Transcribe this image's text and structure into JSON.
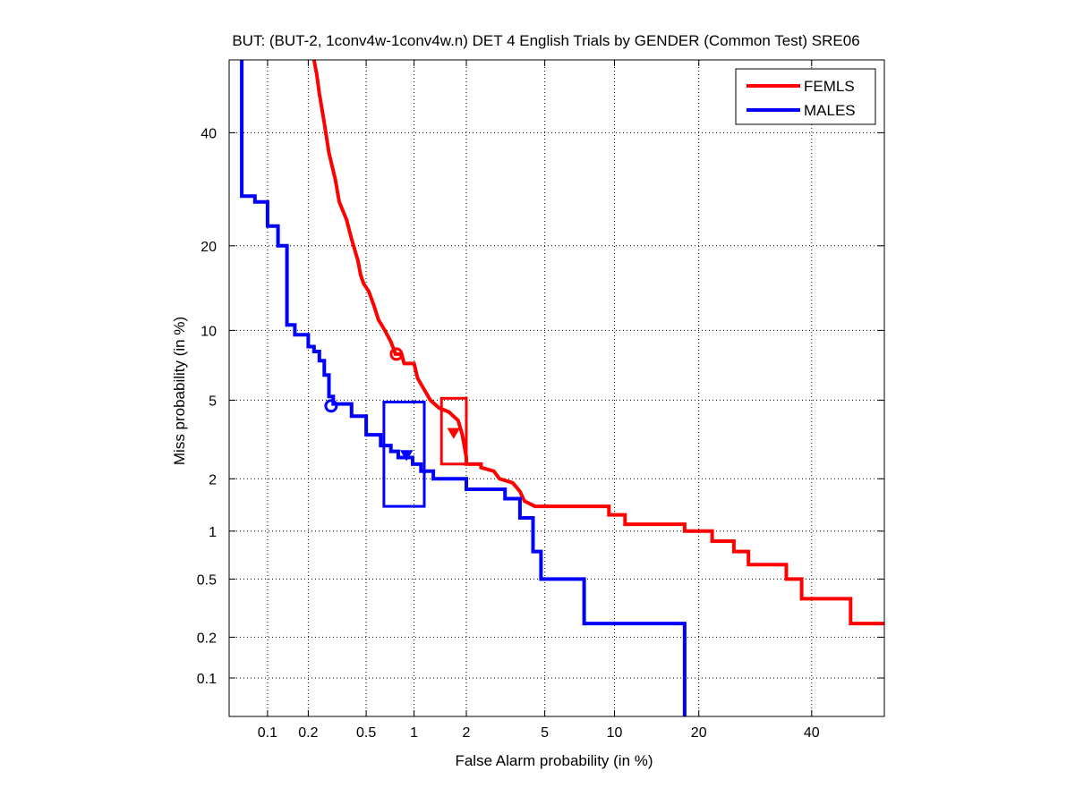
{
  "chart_data": {
    "type": "line",
    "title": "BUT: (BUT-2, 1conv4w-1conv4w.n) DET 4 English Trials by GENDER (Common Test) SRE06",
    "xlabel": "False Alarm probability (in %)",
    "ylabel": "Miss probability (in %)",
    "xscale": "probit",
    "yscale": "probit",
    "xlim": [
      0.05,
      55
    ],
    "ylim": [
      0.05,
      55
    ],
    "xticks": [
      0.1,
      0.2,
      0.5,
      1,
      2,
      5,
      10,
      20,
      40
    ],
    "xtick_labels": [
      "0.1",
      "0.2",
      "0.5",
      "1",
      "2",
      "5",
      "10",
      "20",
      "40"
    ],
    "yticks": [
      0.1,
      0.2,
      0.5,
      1,
      2,
      5,
      10,
      20,
      40
    ],
    "ytick_labels": [
      "0.1",
      "0.2",
      "0.5",
      "1",
      "2",
      "5",
      "10",
      "20",
      "40"
    ],
    "grid": true,
    "legend_position": "top-right",
    "series": [
      {
        "name": "FEMLS",
        "color": "#ff0000",
        "points": [
          [
            0.22,
            55
          ],
          [
            0.23,
            52
          ],
          [
            0.24,
            48
          ],
          [
            0.26,
            42
          ],
          [
            0.28,
            36
          ],
          [
            0.31,
            31
          ],
          [
            0.33,
            27
          ],
          [
            0.37,
            24
          ],
          [
            0.4,
            21
          ],
          [
            0.44,
            18
          ],
          [
            0.46,
            16
          ],
          [
            0.48,
            15
          ],
          [
            0.52,
            14
          ],
          [
            0.56,
            12.5
          ],
          [
            0.6,
            11
          ],
          [
            0.66,
            10
          ],
          [
            0.72,
            9
          ],
          [
            0.77,
            8
          ],
          [
            0.84,
            8
          ],
          [
            0.87,
            7.3
          ],
          [
            1.0,
            7.3
          ],
          [
            1.05,
            6.3
          ],
          [
            1.15,
            5.6
          ],
          [
            1.25,
            5.0
          ],
          [
            1.4,
            4.6
          ],
          [
            1.6,
            4.4
          ],
          [
            1.8,
            4.0
          ],
          [
            1.9,
            3.4
          ],
          [
            2.0,
            2.6
          ],
          [
            2.0,
            2.4
          ],
          [
            2.4,
            2.4
          ],
          [
            2.4,
            2.3
          ],
          [
            2.8,
            2.2
          ],
          [
            3.0,
            2.0
          ],
          [
            3.5,
            1.9
          ],
          [
            3.8,
            1.7
          ],
          [
            4.0,
            1.5
          ],
          [
            4.5,
            1.4
          ],
          [
            9.5,
            1.4
          ],
          [
            9.5,
            1.25
          ],
          [
            11.0,
            1.25
          ],
          [
            11.0,
            1.1
          ],
          [
            18.0,
            1.1
          ],
          [
            18.0,
            1.0
          ],
          [
            22.0,
            1.0
          ],
          [
            22.0,
            0.87
          ],
          [
            25.5,
            0.87
          ],
          [
            25.5,
            0.75
          ],
          [
            28.0,
            0.75
          ],
          [
            28.0,
            0.62
          ],
          [
            35.0,
            0.62
          ],
          [
            35.0,
            0.5
          ],
          [
            38.0,
            0.5
          ],
          [
            38.0,
            0.37
          ],
          [
            48.0,
            0.37
          ],
          [
            48.0,
            0.25
          ],
          [
            55.0,
            0.25
          ]
        ],
        "min_dcf_point": [
          0.78,
          8.0
        ],
        "act_dcf_point": [
          1.7,
          3.5
        ],
        "confidence_box": {
          "fa": [
            1.45,
            2.0
          ],
          "miss": [
            2.4,
            5.1
          ]
        }
      },
      {
        "name": "MALES",
        "color": "#0000ff",
        "points": [
          [
            0.063,
            55
          ],
          [
            0.063,
            28
          ],
          [
            0.08,
            28
          ],
          [
            0.08,
            27
          ],
          [
            0.1,
            27
          ],
          [
            0.1,
            23
          ],
          [
            0.12,
            23
          ],
          [
            0.12,
            20
          ],
          [
            0.14,
            20
          ],
          [
            0.14,
            10.5
          ],
          [
            0.16,
            10.5
          ],
          [
            0.16,
            9.6
          ],
          [
            0.2,
            9.6
          ],
          [
            0.2,
            8.6
          ],
          [
            0.22,
            8.6
          ],
          [
            0.22,
            8.2
          ],
          [
            0.24,
            8.2
          ],
          [
            0.24,
            7.5
          ],
          [
            0.26,
            7.5
          ],
          [
            0.26,
            6.5
          ],
          [
            0.28,
            6.5
          ],
          [
            0.28,
            5.2
          ],
          [
            0.3,
            5.2
          ],
          [
            0.3,
            4.8
          ],
          [
            0.4,
            4.8
          ],
          [
            0.4,
            4.2
          ],
          [
            0.5,
            4.2
          ],
          [
            0.5,
            3.4
          ],
          [
            0.62,
            3.4
          ],
          [
            0.62,
            3.0
          ],
          [
            0.72,
            3.0
          ],
          [
            0.72,
            2.8
          ],
          [
            0.8,
            2.8
          ],
          [
            0.8,
            2.6
          ],
          [
            0.98,
            2.6
          ],
          [
            0.98,
            2.4
          ],
          [
            1.1,
            2.4
          ],
          [
            1.1,
            2.2
          ],
          [
            1.3,
            2.2
          ],
          [
            1.3,
            2.0
          ],
          [
            2.0,
            2.0
          ],
          [
            2.0,
            1.75
          ],
          [
            3.2,
            1.75
          ],
          [
            3.2,
            1.55
          ],
          [
            3.8,
            1.55
          ],
          [
            3.8,
            1.2
          ],
          [
            4.4,
            1.2
          ],
          [
            4.4,
            0.75
          ],
          [
            4.8,
            0.75
          ],
          [
            4.8,
            0.5
          ],
          [
            7.5,
            0.5
          ],
          [
            7.5,
            0.25
          ],
          [
            18.0,
            0.25
          ],
          [
            18.0,
            0.05
          ]
        ],
        "min_dcf_point": [
          0.29,
          4.7
        ],
        "act_dcf_point": [
          0.9,
          2.7
        ],
        "confidence_box": {
          "fa": [
            0.65,
            1.15
          ],
          "miss": [
            1.4,
            4.9
          ]
        }
      }
    ]
  }
}
